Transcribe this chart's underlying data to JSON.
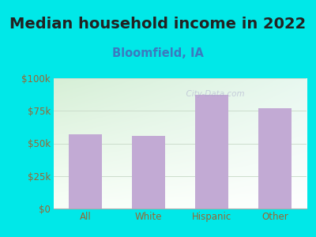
{
  "title": "Median household income in 2022",
  "subtitle": "Bloomfield, IA",
  "categories": [
    "All",
    "White",
    "Hispanic",
    "Other"
  ],
  "values": [
    57000,
    56000,
    87000,
    77000
  ],
  "bar_color": "#c2aad4",
  "ylim": [
    0,
    100000
  ],
  "yticks": [
    0,
    25000,
    50000,
    75000,
    100000
  ],
  "ytick_labels": [
    "$0",
    "$25k",
    "$50k",
    "$75k",
    "$100k"
  ],
  "background_outer": "#00e8e8",
  "background_inner_topleft": "#d6efd6",
  "background_inner_topright": "#e8f8f8",
  "background_inner_bottom": "#f8fff8",
  "title_fontsize": 14,
  "title_color": "#222222",
  "subtitle_fontsize": 10.5,
  "subtitle_color": "#3a7abf",
  "tick_color": "#996633",
  "tick_fontsize": 8.5,
  "watermark": "  City-Data.com",
  "grid_color": "#ccddcc"
}
